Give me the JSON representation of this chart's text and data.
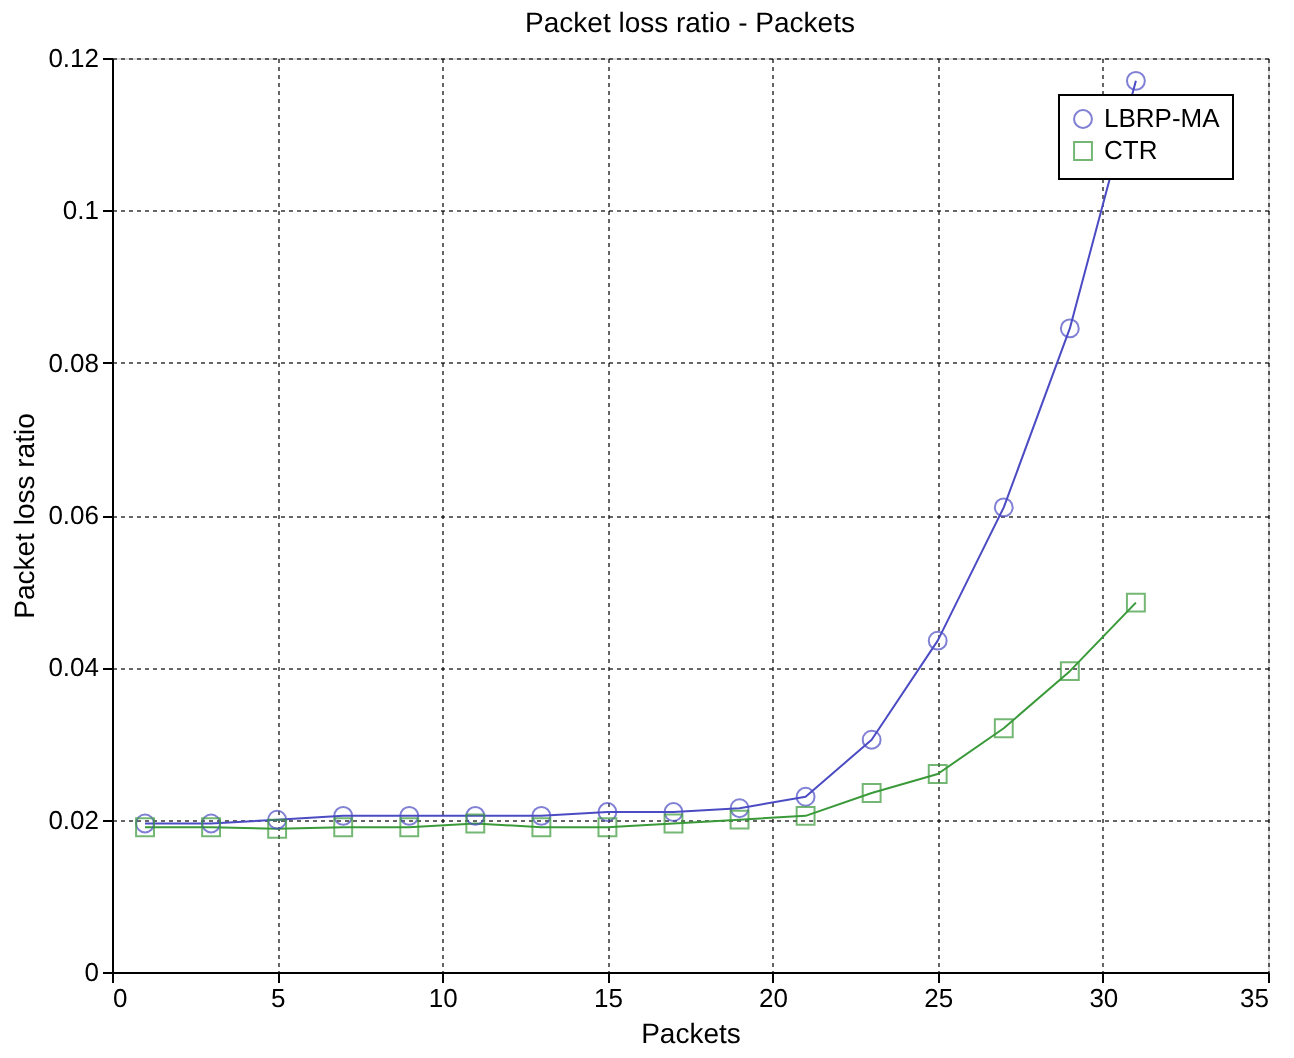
{
  "chart_data": {
    "type": "line",
    "title": "Packet loss ratio - Packets",
    "xlabel": "Packets",
    "ylabel": "Packet loss ratio",
    "x": [
      1,
      3,
      5,
      7,
      9,
      11,
      13,
      15,
      17,
      19,
      21,
      23,
      25,
      27,
      29,
      31
    ],
    "series": [
      {
        "name": "LBRP-MA",
        "color": "#4b4bc4",
        "marker": "circle",
        "values": [
          0.0195,
          0.0195,
          0.02,
          0.0205,
          0.0205,
          0.0205,
          0.0205,
          0.021,
          0.021,
          0.0215,
          0.023,
          0.0305,
          0.0435,
          0.061,
          0.0845,
          0.117
        ]
      },
      {
        "name": "CTR",
        "color": "#3a9a3a",
        "marker": "square",
        "values": [
          0.019,
          0.019,
          0.0188,
          0.019,
          0.019,
          0.0195,
          0.019,
          0.019,
          0.0195,
          0.02,
          0.0205,
          0.0235,
          0.026,
          0.032,
          0.0395,
          0.0485
        ]
      }
    ],
    "xlim": [
      0,
      35
    ],
    "xticks": [
      0,
      5,
      10,
      15,
      20,
      25,
      30,
      35
    ],
    "ylim": [
      0,
      0.12
    ],
    "yticks": [
      0,
      0.02,
      0.04,
      0.06,
      0.08,
      0.1,
      0.12
    ],
    "grid": true,
    "legend": "top right",
    "line_style": "solid"
  }
}
